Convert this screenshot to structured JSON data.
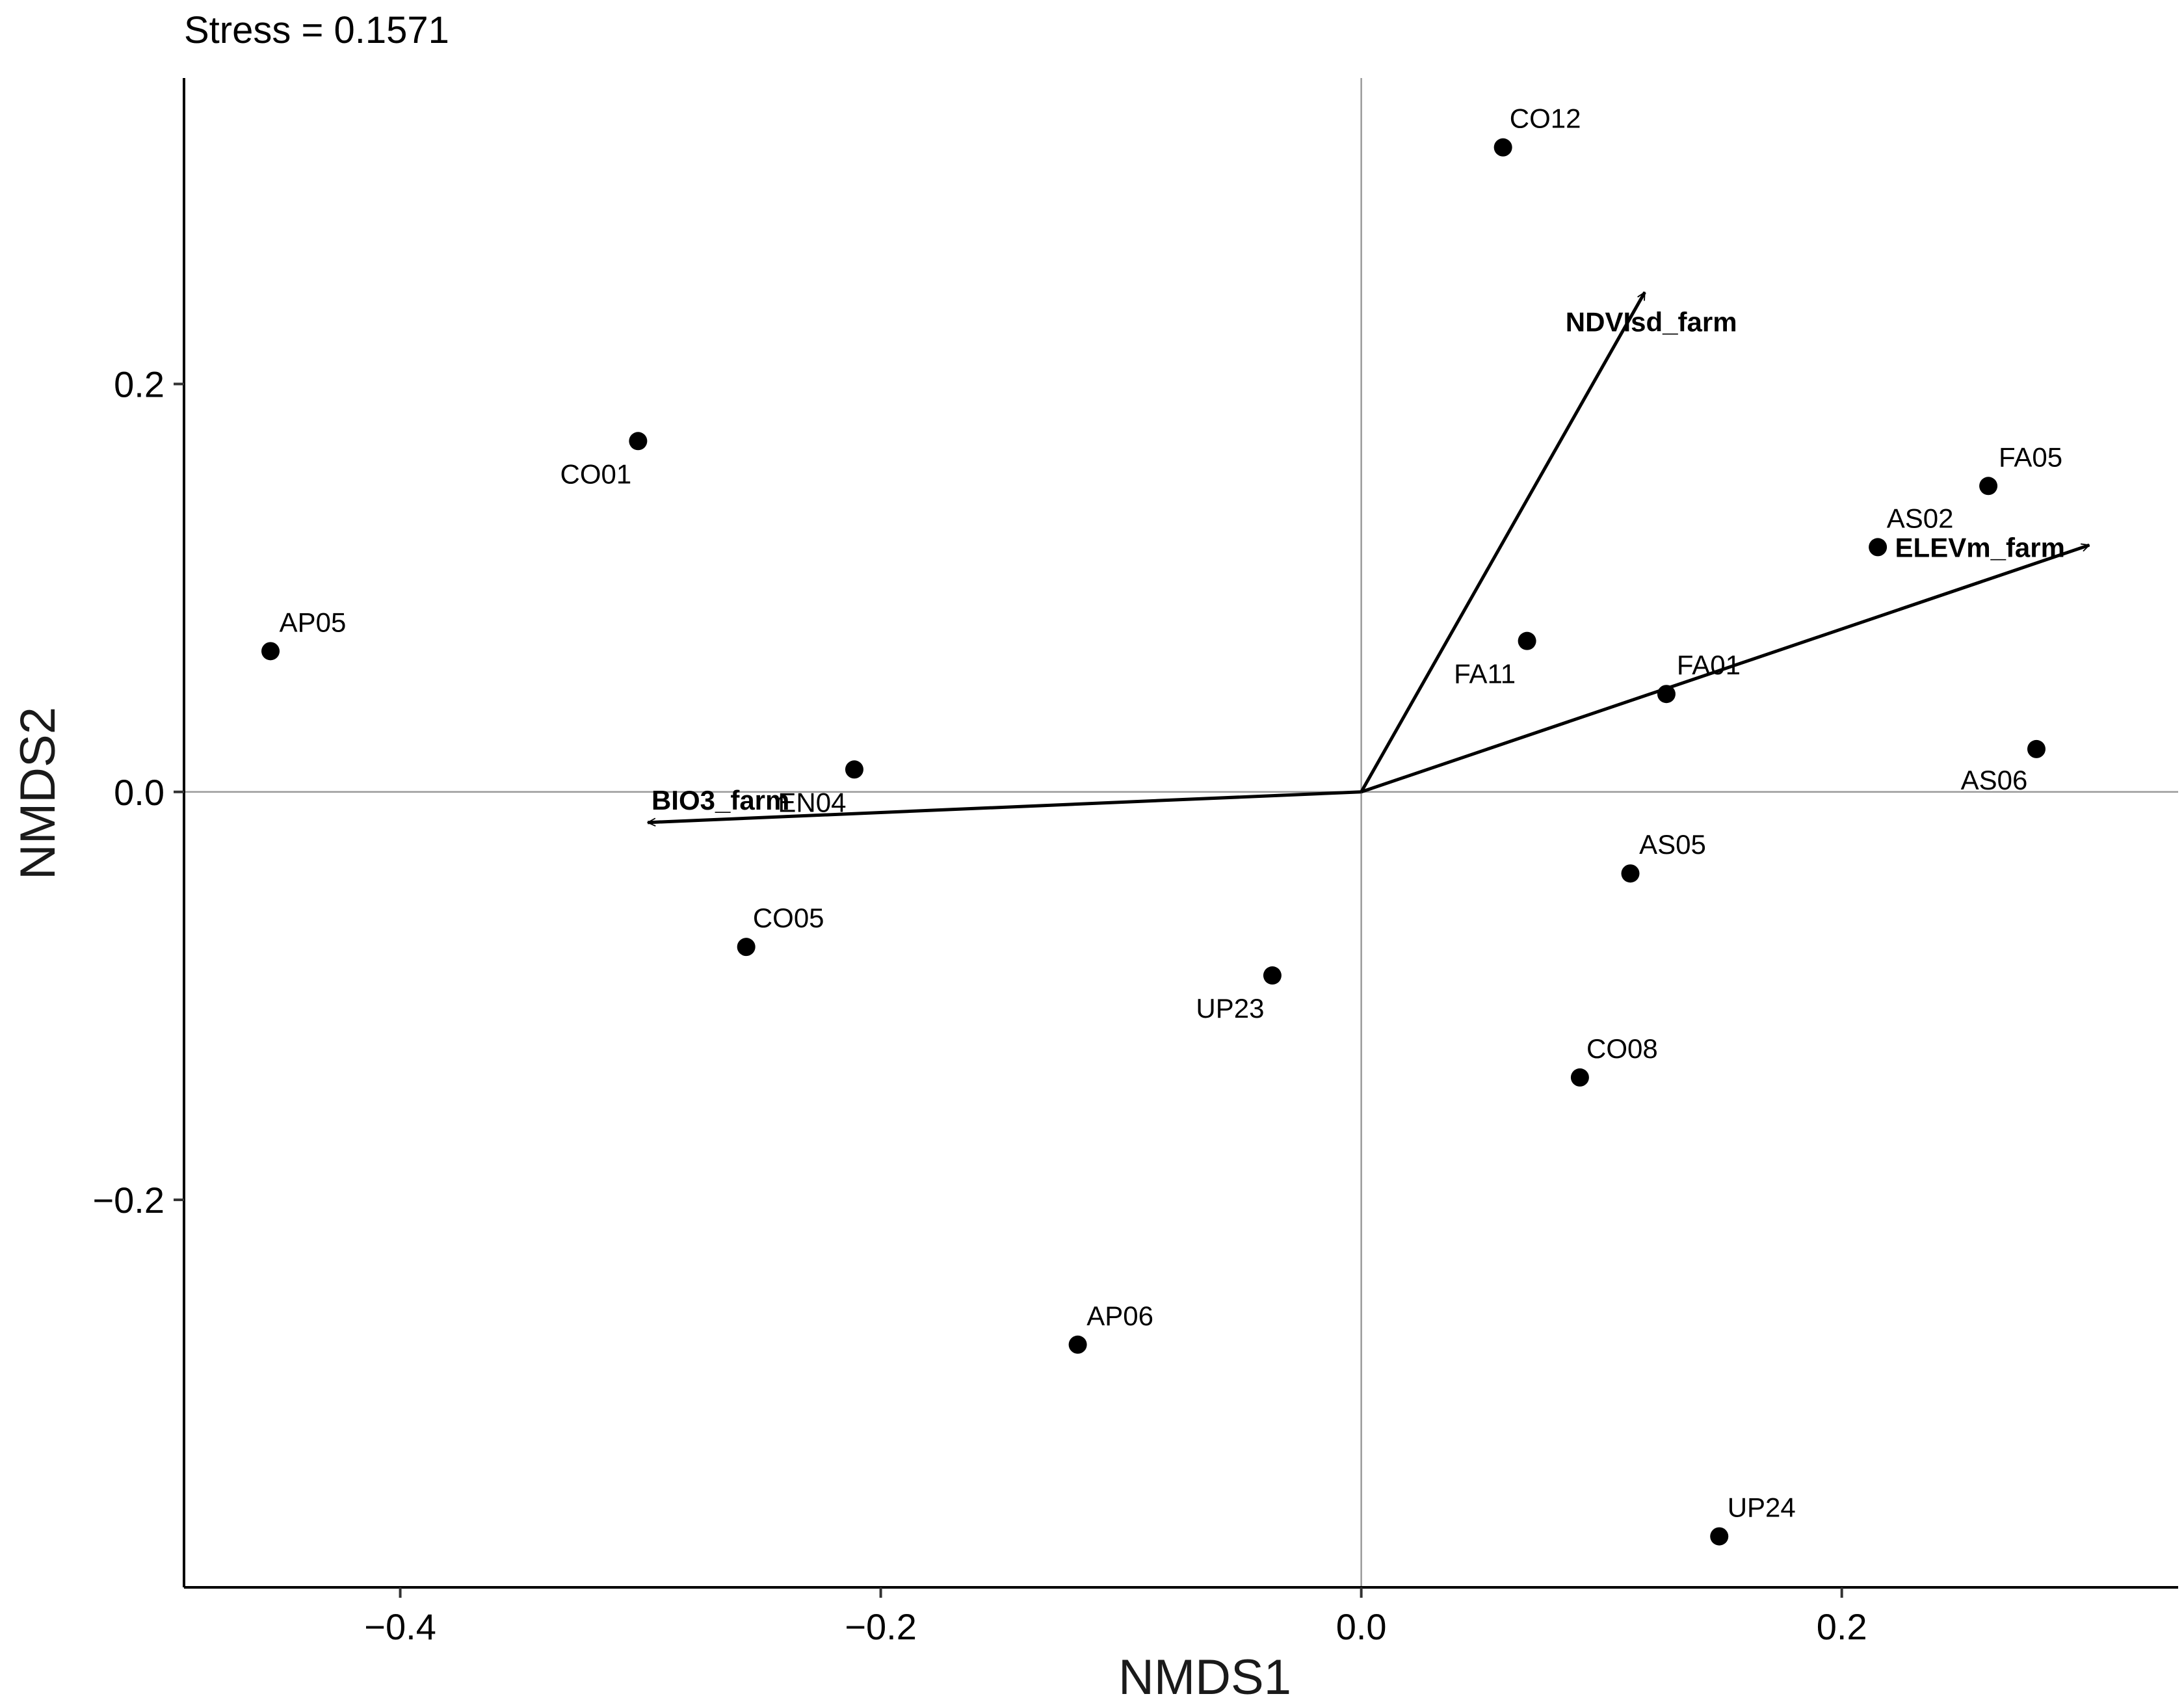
{
  "chart_data": {
    "type": "scatter",
    "title": "Stress = 0.1571",
    "xlabel": "NMDS1",
    "ylabel": "NMDS2",
    "xlim": [
      -0.49,
      0.34
    ],
    "ylim": [
      -0.39,
      0.35
    ],
    "xticks": [
      -0.4,
      -0.2,
      0.0,
      0.2
    ],
    "xtick_labels": [
      "−0.4",
      "−0.2",
      "0.0",
      "0.2"
    ],
    "yticks": [
      -0.2,
      0.0,
      0.2
    ],
    "ytick_labels": [
      "−0.2",
      "0.0",
      "0.2"
    ],
    "grid": false,
    "reference_lines": [
      0,
      0
    ],
    "points": [
      {
        "label": "CO12",
        "x": 0.059,
        "y": 0.316
      },
      {
        "label": "CO01",
        "x": -0.301,
        "y": 0.172
      },
      {
        "label": "FA05",
        "x": 0.261,
        "y": 0.15
      },
      {
        "label": "AS02",
        "x": 0.215,
        "y": 0.12
      },
      {
        "label": "AP05",
        "x": -0.454,
        "y": 0.069
      },
      {
        "label": "FA11",
        "x": 0.069,
        "y": 0.074
      },
      {
        "label": "FA01",
        "x": 0.127,
        "y": 0.048
      },
      {
        "label": "AS06",
        "x": 0.281,
        "y": 0.021
      },
      {
        "label": "EN04",
        "x": -0.211,
        "y": 0.011
      },
      {
        "label": "AS05",
        "x": 0.112,
        "y": -0.04
      },
      {
        "label": "CO05",
        "x": -0.256,
        "y": -0.076
      },
      {
        "label": "UP23",
        "x": -0.037,
        "y": -0.09
      },
      {
        "label": "CO08",
        "x": 0.091,
        "y": -0.14
      },
      {
        "label": "AP06",
        "x": -0.118,
        "y": -0.271
      },
      {
        "label": "UP24",
        "x": 0.149,
        "y": -0.365
      }
    ],
    "vectors": [
      {
        "label": "NDVIsd_farm",
        "x": 0.118,
        "y": 0.245
      },
      {
        "label": "ELEVm_farm",
        "x": 0.303,
        "y": 0.121
      },
      {
        "label": "BIO3_farm",
        "x": -0.297,
        "y": -0.015
      }
    ]
  }
}
